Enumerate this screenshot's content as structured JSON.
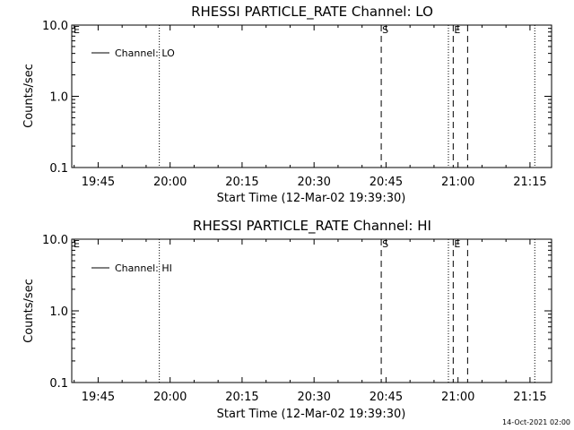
{
  "chart_data": [
    {
      "type": "line",
      "title": "RHESSI PARTICLE_RATE Channel: LO",
      "xlabel": "Start Time (12-Mar-02 19:39:30)",
      "ylabel": "Counts/sec",
      "y_scale": "log",
      "ylim": [
        0.1,
        10.0
      ],
      "yticks": [
        "0.1",
        "1.0",
        "10.0"
      ],
      "xlim": [
        "19:39:30",
        "21:19:30"
      ],
      "xticks": [
        "19:45",
        "20:00",
        "20:15",
        "20:30",
        "20:45",
        "21:00",
        "21:15"
      ],
      "legend_position": "top-left",
      "series": [
        {
          "name": "Channel: LO",
          "values": []
        }
      ],
      "vlines": [
        {
          "time": "19:57:45",
          "style": "dotted",
          "label": ""
        },
        {
          "time": "20:44:00",
          "style": "dashed",
          "label": "S"
        },
        {
          "time": "20:58:00",
          "style": "dotted",
          "label": ""
        },
        {
          "time": "20:59:00",
          "style": "dashed",
          "label": "E"
        },
        {
          "time": "21:02:00",
          "style": "dashed",
          "label": ""
        },
        {
          "time": "21:16:00",
          "style": "dotted",
          "label": ""
        }
      ],
      "corner_mark": "E"
    },
    {
      "type": "line",
      "title": "RHESSI PARTICLE_RATE Channel: HI",
      "xlabel": "Start Time (12-Mar-02 19:39:30)",
      "ylabel": "Counts/sec",
      "y_scale": "log",
      "ylim": [
        0.1,
        10.0
      ],
      "yticks": [
        "0.1",
        "1.0",
        "10.0"
      ],
      "xlim": [
        "19:39:30",
        "21:19:30"
      ],
      "xticks": [
        "19:45",
        "20:00",
        "20:15",
        "20:30",
        "20:45",
        "21:00",
        "21:15"
      ],
      "legend_position": "top-left",
      "series": [
        {
          "name": "Channel: HI",
          "values": []
        }
      ],
      "vlines": [
        {
          "time": "19:57:45",
          "style": "dotted",
          "label": ""
        },
        {
          "time": "20:44:00",
          "style": "dashed",
          "label": "S"
        },
        {
          "time": "20:58:00",
          "style": "dotted",
          "label": ""
        },
        {
          "time": "20:59:00",
          "style": "dashed",
          "label": "E"
        },
        {
          "time": "21:02:00",
          "style": "dashed",
          "label": ""
        },
        {
          "time": "21:16:00",
          "style": "dotted",
          "label": ""
        }
      ],
      "corner_mark": "E"
    }
  ],
  "footer": {
    "timestamp": "14-Oct-2021 02:00"
  }
}
